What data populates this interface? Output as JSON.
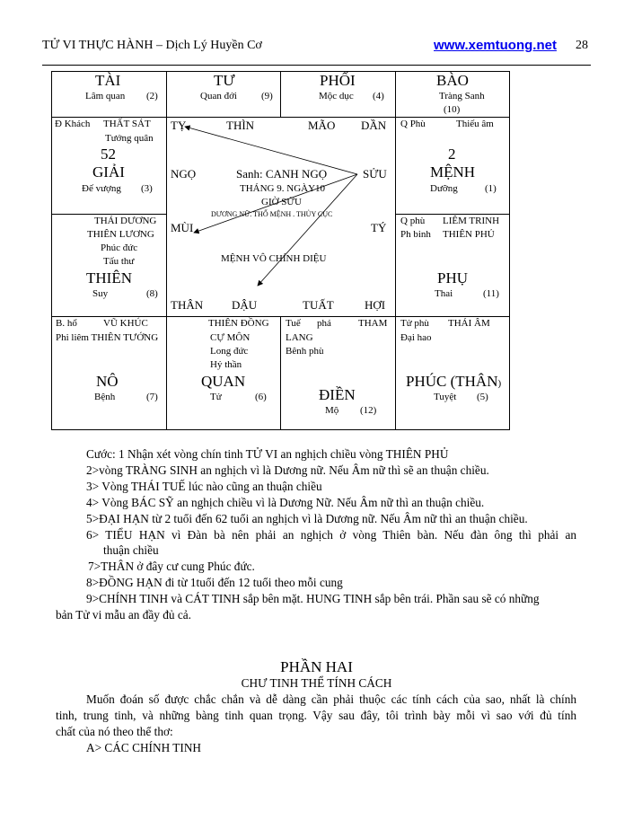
{
  "header": {
    "title": "TỬ VI THỰC HÀNH – Dịch Lý Huyền Cơ",
    "link": "www.xemtuong.net",
    "page": "28",
    "link_color": "#0000ee"
  },
  "chart": {
    "tai": {
      "name": "TÀI",
      "sub": "Lâm quan",
      "num": "(2)"
    },
    "tu": {
      "name": "TƯ",
      "sub": "Quan đới",
      "num": "(9)"
    },
    "phoi": {
      "name": "PHỐI",
      "sub": "Mộc dục",
      "num": "(4)"
    },
    "bao": {
      "name": "BÀO",
      "sub": "Tràng Sanh",
      "num": "(10)"
    },
    "giai": {
      "star1": "Đ Khách",
      "star2": "THẤT SÁT",
      "star3": "Tướng quân",
      "age": "52",
      "name": "GIẢI",
      "sub": "Đế vượng",
      "num": "(3)"
    },
    "menh": {
      "star1": "Q Phù",
      "star2": "Thiếu âm",
      "age": "2",
      "name": "MỆNH",
      "sub": "Dưỡng",
      "num": "(1)"
    },
    "thien": {
      "star1": "THÁI DƯƠNG",
      "star2": "THIÊN LƯƠNG",
      "star3": "Phúc đức",
      "star4": "Tấu thư",
      "name": "THIÊN",
      "sub": "Suy",
      "num": "(8)"
    },
    "phu": {
      "star1": "Q phù",
      "star2": "LIÊM TRINH",
      "star3": "Ph binh",
      "star4": "THIÊN PHỦ",
      "name": "PHỤ",
      "sub": "Thai",
      "num": "(11)"
    },
    "no": {
      "star1": "B. hổ",
      "star2": "VŨ KHÚC",
      "star3": "Phi liêm THIÊN TƯỚNG",
      "name": "NÔ",
      "sub": "Bệnh",
      "num": "(7)"
    },
    "quan": {
      "star1": "THIÊN ĐỒNG",
      "star2": "CỰ MÔN",
      "star3": "Long đức",
      "star4": "Hỷ thần",
      "name": "QUAN",
      "sub": "Tử",
      "num": "(6)"
    },
    "dien": {
      "star1": "Tuế",
      "star2": "phá",
      "star3": "THAM",
      "star4": "LANG",
      "star5": "Bênh phù",
      "name": "ĐIỀN",
      "sub": "Mộ",
      "num": "(12)"
    },
    "phuc": {
      "star1": "Tử phù",
      "star2": "THÁI ÂM",
      "star3": "Đại hao",
      "name": "PHÚC (THÂN",
      "paren": ")",
      "sub": "Tuyệt",
      "num": "(5)"
    },
    "center": {
      "branches": {
        "ty_snake": "TỴ",
        "thin": "THÌN",
        "mao": "MÃO",
        "dan": "DẦN",
        "ngo": "NGỌ",
        "suu": "SỬU",
        "mui": "MÙI",
        "ty_rat": "TÝ",
        "than": "THÂN",
        "dau": "DẬU",
        "tuat": "TUẤT",
        "hoi": "HỢI"
      },
      "birth": "Sanh: CANH NGỌ",
      "month_day": "THÁNG 9. NGÀY10",
      "hour": "GIỜ SỬU",
      "info": "DƯƠNG NỮ. THỔ MỆNH . THỦY CỤC",
      "note": "MỆNH VÔ CHÍNH DIỆU"
    }
  },
  "notes": [
    "Cước: 1 Nhận xét vòng chín tinh TỬ VI an nghịch chiều vòng THIÊN PHỦ",
    "2>vòng TRÀNG SINH an nghịch vì là Dương nữ. Nếu Âm nữ thì sẽ an thuận chiều.",
    "3> Vòng THÁI TUẾ lúc nào cũng an thuận chiều",
    "4> Vòng BÁC SỸ an nghịch chiều vì là Dương Nữ. Nếu Âm nữ thì an thuận chiều.",
    "5>ĐẠI HẠN từ 2 tuổi đến 62 tuổi an nghịch vì là Dương nữ. Nếu Âm nữ thì an thuận chiều.",
    "6> TIỂU HẠN vì Đàn bà nên phải an nghịch ở vòng Thiên bàn. Nếu đàn ông thì phải an",
    "thuận chiều",
    "7>THÂN ở đây cư cung Phúc đức.",
    "8>ĐỒNG HẠN đi từ 1tuổi đến 12 tuổi theo mỗi cung",
    "9>CHÍNH TINH và CÁT TINH sắp bên mặt. HUNG TINH sắp bên trái. Phần sau sẽ có những",
    "bản Tử vi mẫu an đầy đủ cả."
  ],
  "section": {
    "title": "PHẦN HAI",
    "subtitle": "CHƯ TINH THỂ TÍNH CÁCH",
    "para": [
      "Muốn đoán số được chắc chắn và dễ dàng cần phải thuộc các tính cách của sao, nhất là chính",
      "tinh, trung tinh, và những bàng tinh quan trọng. Vậy sau đây, tôi trình bày mỗi vì sao với đủ tính",
      "chất của nó theo thể thơ:"
    ],
    "heading_a": "A> CÁC CHÍNH TINH"
  }
}
